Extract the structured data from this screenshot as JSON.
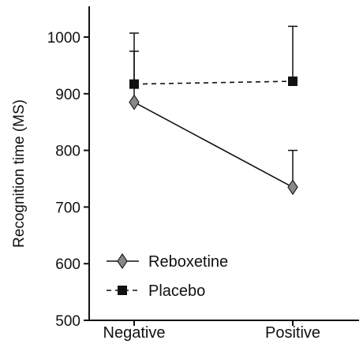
{
  "chart_data": {
    "type": "line",
    "categories": [
      "Negative",
      "Positive"
    ],
    "ylabel": "Recognition time (MS)",
    "xlabel": "",
    "ylim": [
      500,
      1000
    ],
    "yticks": [
      500,
      600,
      700,
      800,
      900,
      1000
    ],
    "grid": false,
    "legend_placement": "bottom-left",
    "series": [
      {
        "name": "Reboxetine",
        "values": [
          885,
          735
        ],
        "errors": [
          90,
          65
        ],
        "marker": "diamond",
        "line": "solid",
        "color": "#888888"
      },
      {
        "name": "Placebo",
        "values": [
          917,
          922
        ],
        "errors": [
          90,
          97
        ],
        "marker": "square",
        "line": "dashed",
        "color": "#111111"
      }
    ]
  }
}
